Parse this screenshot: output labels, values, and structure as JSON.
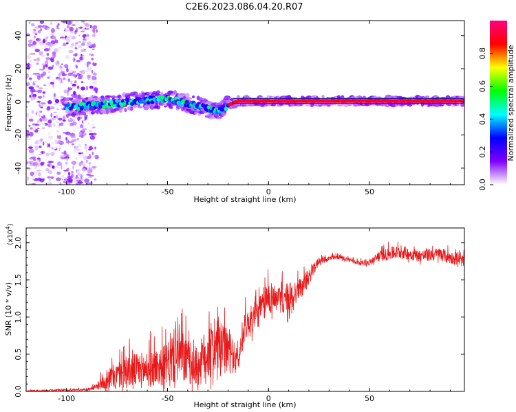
{
  "figure": {
    "title": "C2E6.2023.086.04.20.R07"
  },
  "chart_data": [
    {
      "type": "heatmap",
      "xlabel": "Height of straight line (km)",
      "ylabel": "Frequency (Hz)",
      "xlim": [
        -120,
        97
      ],
      "ylim": [
        -50,
        49
      ],
      "x_ticks": [
        -100,
        -50,
        0,
        50
      ],
      "y_ticks": [
        -40,
        -20,
        0,
        20,
        40
      ],
      "grid": false,
      "colorbar": {
        "label": "Normalized spectral amplitude",
        "range": [
          0,
          1
        ],
        "ticks": [
          0.0,
          0.2,
          0.4,
          0.6,
          0.8
        ],
        "colormap": [
          "#ffffff",
          "#7f00ff",
          "#0000ff",
          "#00ffff",
          "#00ff00",
          "#ffff00",
          "#ff0000",
          "#ff0080"
        ]
      },
      "ridge": [
        {
          "x": -100,
          "f": -3.0
        },
        {
          "x": -90,
          "f": -2.5
        },
        {
          "x": -80,
          "f": -1.5
        },
        {
          "x": -70,
          "f": 0.0
        },
        {
          "x": -60,
          "f": 1.0
        },
        {
          "x": -50,
          "f": 2.0
        },
        {
          "x": -40,
          "f": -1.0
        },
        {
          "x": -30,
          "f": -4.0
        },
        {
          "x": -25,
          "f": -6.0
        },
        {
          "x": -20,
          "f": -2.0
        },
        {
          "x": -15,
          "f": 0.5
        },
        {
          "x": 0,
          "f": 0.5
        },
        {
          "x": 20,
          "f": 0.5
        },
        {
          "x": 50,
          "f": 0.5
        },
        {
          "x": 97,
          "f": 0.5
        }
      ]
    },
    {
      "type": "line",
      "xlabel": "Height of straight line (km)",
      "ylabel": "SNR (10 * v/v)",
      "y_multiplier": "(x10",
      "y_multiplier_exp": "4",
      "xlim": [
        -120,
        97
      ],
      "ylim": [
        0,
        2.2
      ],
      "x_ticks": [
        -100,
        -50,
        0,
        50
      ],
      "y_ticks": [
        0.0,
        0.5,
        1.0,
        1.5,
        2.0
      ],
      "grid": false,
      "series": [
        {
          "color": "#e8191a",
          "envelope": [
            {
              "x": -120,
              "base": 0.0,
              "amp": 0.02
            },
            {
              "x": -90,
              "base": 0.02,
              "amp": 0.03
            },
            {
              "x": -85,
              "base": 0.05,
              "amp": 0.08
            },
            {
              "x": -80,
              "base": 0.12,
              "amp": 0.28
            },
            {
              "x": -70,
              "base": 0.2,
              "amp": 0.45
            },
            {
              "x": -60,
              "base": 0.22,
              "amp": 0.5
            },
            {
              "x": -50,
              "base": 0.28,
              "amp": 0.55
            },
            {
              "x": -45,
              "base": 0.4,
              "amp": 0.85
            },
            {
              "x": -40,
              "base": 0.3,
              "amp": 0.6
            },
            {
              "x": -35,
              "base": 0.25,
              "amp": 0.55
            },
            {
              "x": -30,
              "base": 0.4,
              "amp": 0.8
            },
            {
              "x": -25,
              "base": 0.5,
              "amp": 0.7
            },
            {
              "x": -20,
              "base": 0.45,
              "amp": 0.6
            },
            {
              "x": -15,
              "base": 0.35,
              "amp": 0.3
            },
            {
              "x": -12,
              "base": 0.8,
              "amp": 0.4
            },
            {
              "x": -5,
              "base": 1.0,
              "amp": 0.4
            },
            {
              "x": 0,
              "base": 1.2,
              "amp": 0.5
            },
            {
              "x": 5,
              "base": 1.2,
              "amp": 0.3
            },
            {
              "x": 10,
              "base": 1.1,
              "amp": 0.6
            },
            {
              "x": 15,
              "base": 1.35,
              "amp": 0.25
            },
            {
              "x": 20,
              "base": 1.5,
              "amp": 0.2
            },
            {
              "x": 25,
              "base": 1.75,
              "amp": 0.1
            },
            {
              "x": 35,
              "base": 1.8,
              "amp": 0.06
            },
            {
              "x": 45,
              "base": 1.72,
              "amp": 0.06
            },
            {
              "x": 50,
              "base": 1.72,
              "amp": 0.08
            },
            {
              "x": 55,
              "base": 1.8,
              "amp": 0.15
            },
            {
              "x": 65,
              "base": 1.85,
              "amp": 0.18
            },
            {
              "x": 75,
              "base": 1.8,
              "amp": 0.16
            },
            {
              "x": 85,
              "base": 1.82,
              "amp": 0.18
            },
            {
              "x": 97,
              "base": 1.72,
              "amp": 0.15
            }
          ]
        }
      ]
    }
  ]
}
